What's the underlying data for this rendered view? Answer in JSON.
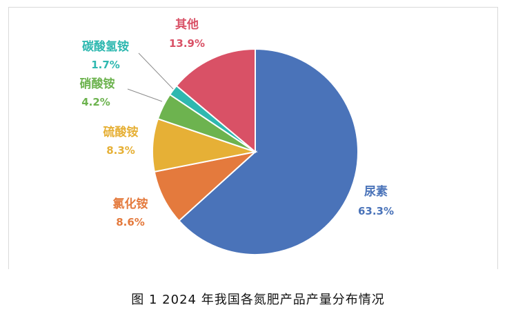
{
  "caption": "图 1 2024 年我国各氮肥产品产量分布情况",
  "chart_data": {
    "type": "pie",
    "start_angle_deg": 0,
    "direction": "clockwise",
    "slices": [
      {
        "label": "尿素",
        "value": 63.3,
        "pct_text": "63.3%",
        "color": "#4a73b9"
      },
      {
        "label": "氯化铵",
        "value": 8.6,
        "pct_text": "8.6%",
        "color": "#e47a3d"
      },
      {
        "label": "硫酸铵",
        "value": 8.3,
        "pct_text": "8.3%",
        "color": "#e6b036"
      },
      {
        "label": "硝酸铵",
        "value": 4.2,
        "pct_text": "4.2%",
        "color": "#6db34f"
      },
      {
        "label": "碳酸氢铵",
        "value": 1.7,
        "pct_text": "1.7%",
        "color": "#2eb8b0"
      },
      {
        "label": "其他",
        "value": 13.9,
        "pct_text": "13.9%",
        "color": "#d95166"
      }
    ]
  }
}
